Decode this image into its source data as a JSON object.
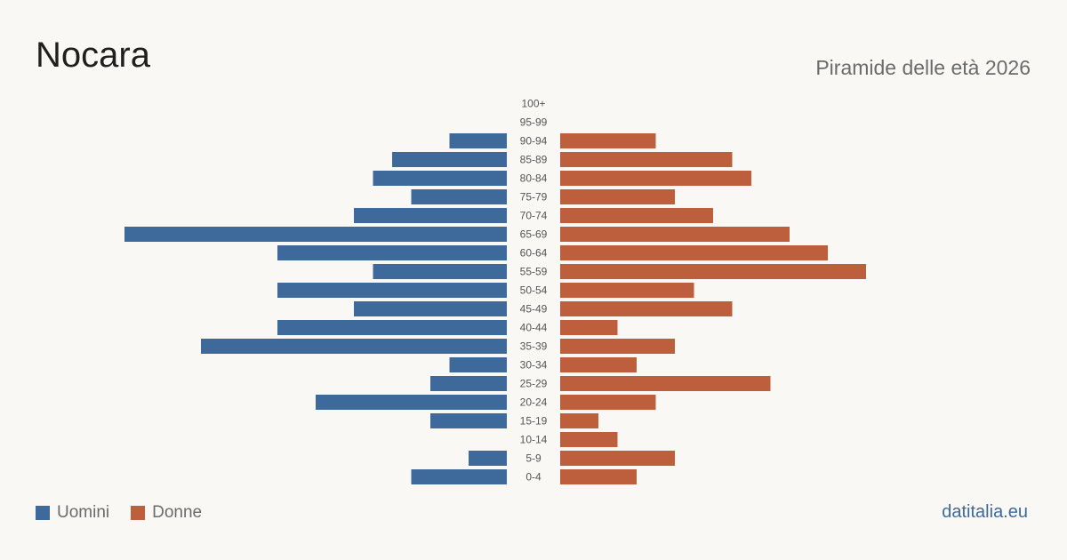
{
  "header": {
    "title": "Nocara",
    "subtitle": "Piramide delle età 2026"
  },
  "legend": {
    "male_label": "Uomini",
    "female_label": "Donne"
  },
  "footer": {
    "site": "datitalia.eu"
  },
  "colors": {
    "male": "#3d6a9a",
    "female": "#bd5f3d"
  },
  "chart_data": {
    "type": "bar",
    "orientation": "horizontal-pyramid",
    "categories": [
      "100+",
      "95-99",
      "90-94",
      "85-89",
      "80-84",
      "75-79",
      "70-74",
      "65-69",
      "60-64",
      "55-59",
      "50-54",
      "45-49",
      "40-44",
      "35-39",
      "30-34",
      "25-29",
      "20-24",
      "15-19",
      "10-14",
      "5-9",
      "0-4"
    ],
    "series": [
      {
        "name": "Uomini",
        "values": [
          0,
          0,
          3,
          6,
          7,
          5,
          8,
          20,
          12,
          7,
          12,
          8,
          12,
          16,
          3,
          4,
          10,
          4,
          0,
          2,
          5
        ]
      },
      {
        "name": "Donne",
        "values": [
          0,
          0,
          5,
          9,
          10,
          6,
          8,
          12,
          14,
          16,
          7,
          9,
          3,
          6,
          4,
          11,
          5,
          2,
          3,
          6,
          4
        ]
      }
    ],
    "grid": false,
    "legend_position": "bottom-left"
  }
}
